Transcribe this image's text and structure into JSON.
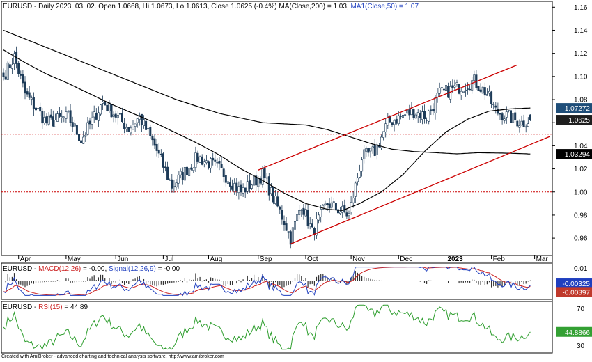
{
  "chart_data": [
    {
      "panel": "price",
      "type": "candlestick",
      "header": {
        "symbol": "EURUSD",
        "info": " - Daily 2023. 03. 02. Open 1.0668, Hi 1.0673, Lo 1.0613, Close 1.0625 (-0.4%) ",
        "ma200_text": "MA(Close,200) = 1.03, ",
        "ma50_text": "MA1(Close,50) = 1.07"
      },
      "ylim": [
        0.945,
        1.165
      ],
      "y_ticks": [
        "1.16",
        "1.14",
        "1.12",
        "1.10",
        "1.08",
        "1.06",
        "1.04",
        "1.02",
        "1.00",
        "0.98",
        "0.96"
      ],
      "x_labels": [
        {
          "t": "Apr",
          "d": 7
        },
        {
          "t": "May",
          "d": 29
        },
        {
          "t": "Jun",
          "d": 52
        },
        {
          "t": "Jul",
          "d": 74
        },
        {
          "t": "Aug",
          "d": 95
        },
        {
          "t": "Sep",
          "d": 118
        },
        {
          "t": "Oct",
          "d": 140
        },
        {
          "t": "Nov",
          "d": 161
        },
        {
          "t": "Dec",
          "d": 183
        },
        {
          "t": "2023",
          "d": 205,
          "bold": true
        },
        {
          "t": "Feb",
          "d": 226
        },
        {
          "t": "Mar",
          "d": 246
        }
      ],
      "close_anchors": [
        [
          0,
          1.1
        ],
        [
          5,
          1.117
        ],
        [
          10,
          1.085
        ],
        [
          20,
          1.06
        ],
        [
          30,
          1.065
        ],
        [
          36,
          1.045
        ],
        [
          46,
          1.078
        ],
        [
          58,
          1.055
        ],
        [
          63,
          1.065
        ],
        [
          70,
          1.04
        ],
        [
          78,
          1.005
        ],
        [
          90,
          1.03
        ],
        [
          100,
          1.02
        ],
        [
          110,
          1.0
        ],
        [
          120,
          1.015
        ],
        [
          125,
          0.995
        ],
        [
          130,
          0.975
        ],
        [
          133,
          0.96
        ],
        [
          138,
          0.99
        ],
        [
          143,
          0.965
        ],
        [
          150,
          0.99
        ],
        [
          160,
          0.98
        ],
        [
          166,
          1.03
        ],
        [
          172,
          1.035
        ],
        [
          178,
          1.06
        ],
        [
          184,
          1.065
        ],
        [
          190,
          1.07
        ],
        [
          196,
          1.065
        ],
        [
          202,
          1.085
        ],
        [
          210,
          1.09
        ],
        [
          218,
          1.096
        ],
        [
          224,
          1.085
        ],
        [
          228,
          1.07
        ],
        [
          235,
          1.064
        ],
        [
          240,
          1.06
        ],
        [
          244,
          1.0625
        ]
      ],
      "ma200_anchors": [
        [
          0,
          1.14
        ],
        [
          20,
          1.125
        ],
        [
          40,
          1.11
        ],
        [
          60,
          1.095
        ],
        [
          80,
          1.08
        ],
        [
          100,
          1.068
        ],
        [
          120,
          1.06
        ],
        [
          140,
          1.058
        ],
        [
          150,
          1.054
        ],
        [
          160,
          1.048
        ],
        [
          170,
          1.042
        ],
        [
          180,
          1.037
        ],
        [
          190,
          1.035
        ],
        [
          200,
          1.034
        ],
        [
          210,
          1.033
        ],
        [
          220,
          1.034
        ],
        [
          235,
          1.0335
        ],
        [
          244,
          1.0329
        ]
      ],
      "ma50_anchors": [
        [
          0,
          1.123
        ],
        [
          10,
          1.112
        ],
        [
          20,
          1.102
        ],
        [
          30,
          1.094
        ],
        [
          40,
          1.085
        ],
        [
          50,
          1.076
        ],
        [
          60,
          1.068
        ],
        [
          70,
          1.06
        ],
        [
          80,
          1.051
        ],
        [
          90,
          1.042
        ],
        [
          100,
          1.032
        ],
        [
          110,
          1.02
        ],
        [
          120,
          1.01
        ],
        [
          130,
          0.999
        ],
        [
          140,
          0.99
        ],
        [
          150,
          0.985
        ],
        [
          157,
          0.984
        ],
        [
          165,
          0.99
        ],
        [
          175,
          1.0
        ],
        [
          185,
          1.015
        ],
        [
          195,
          1.035
        ],
        [
          205,
          1.052
        ],
        [
          215,
          1.063
        ],
        [
          225,
          1.07
        ],
        [
          235,
          1.072
        ],
        [
          244,
          1.0727
        ]
      ],
      "h_lines": [
        1.102,
        1.05,
        1.0
      ],
      "channel_upper": {
        "from": [
          118,
          1.019
        ],
        "to": [
          238,
          1.11
        ]
      },
      "channel_lower": {
        "from": [
          133,
          0.955
        ],
        "to": [
          253,
          1.048
        ]
      },
      "value_boxes": [
        {
          "text": "1.07272",
          "value": 1.07272,
          "bg": "#1f4e79"
        },
        {
          "text": "1.0625",
          "value": 1.0625,
          "bg": "#1f1f1f"
        },
        {
          "text": "1.03294",
          "value": 1.03294,
          "bg": "#000000"
        }
      ]
    },
    {
      "panel": "macd",
      "type": "line",
      "header": {
        "symbol": "EURUSD",
        "a": " - ",
        "macd_text": "MACD(12,26)",
        "b": " = -0.00, ",
        "signal_text": "Signal(12,26,9)",
        "c": " = -0.00"
      },
      "ylim": [
        -0.014,
        0.014
      ],
      "y_ticks": [
        {
          "t": "0.01",
          "v": 0.01
        },
        {
          "t": "-0.01",
          "v": -0.01
        }
      ],
      "value_boxes": [
        {
          "text": "-0.00325",
          "value": -0.00325,
          "bg": "#1f3fbf"
        },
        {
          "text": "-0.00397",
          "value": -0.00397,
          "bg": "#c0392b"
        }
      ]
    },
    {
      "panel": "rsi",
      "type": "line",
      "header": {
        "symbol": "EURUSD",
        "a": " - ",
        "rsi_text": "RSI(15)",
        "b": " = 44.89"
      },
      "ylim": [
        22,
        78
      ],
      "y_ticks": [
        {
          "t": "70",
          "v": 70
        },
        {
          "t": "30",
          "v": 30
        }
      ],
      "value_box": {
        "text": "44.8866",
        "value": 44.8866,
        "bg": "#33a033"
      }
    }
  ],
  "colors": {
    "candle_up": "#ffffff",
    "candle_down": "#1c3a57",
    "candle_outline": "#1c3a57",
    "ma_line": "#000000",
    "trend_red": "#cc0000",
    "macd_line": "#1f3fbf",
    "signal_line": "#cc2222",
    "histogram": "#333333",
    "rsi_line": "#2e9e2e",
    "axis": "#000000",
    "grid_dots": "#cc0000"
  },
  "footer_text": "Created with AmiBroker - advanced charting and technical analysis software. http://www.amibroker.com"
}
